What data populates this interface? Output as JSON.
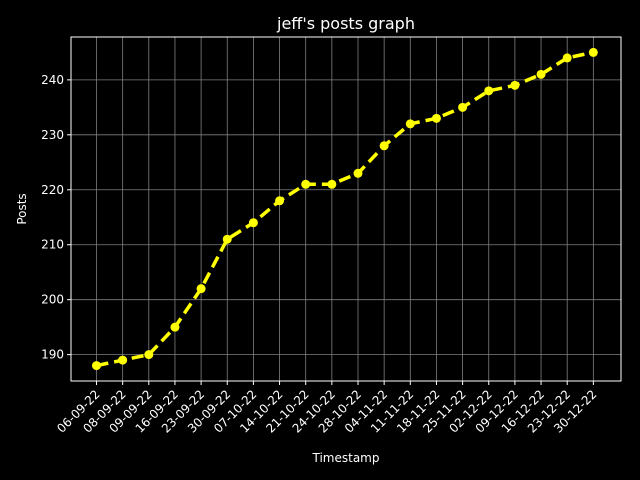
{
  "chart_data": {
    "type": "line",
    "title": "jeff's posts graph",
    "xlabel": "Timestamp",
    "ylabel": "Posts",
    "categories": [
      "06-09-22",
      "08-09-22",
      "09-09-22",
      "16-09-22",
      "23-09-22",
      "30-09-22",
      "07-10-22",
      "14-10-22",
      "21-10-22",
      "24-10-22",
      "28-10-22",
      "04-11-22",
      "11-11-22",
      "18-11-22",
      "25-11-22",
      "02-12-22",
      "09-12-22",
      "16-12-22",
      "23-12-22",
      "30-12-22"
    ],
    "series": [
      {
        "values": [
          188,
          189,
          190,
          195,
          202,
          211,
          214,
          218,
          221,
          221,
          223,
          228,
          232,
          233,
          235,
          238,
          239,
          241,
          244,
          245
        ],
        "color": "#ffff00",
        "line_style": "dashed",
        "marker": "circle"
      }
    ],
    "ylim": [
      185.2,
      247.8
    ],
    "yticks": [
      190,
      200,
      210,
      220,
      230,
      240
    ],
    "grid": true,
    "background": "#000000",
    "foreground": "#ffffff",
    "grid_color": "#7f7f7f"
  }
}
